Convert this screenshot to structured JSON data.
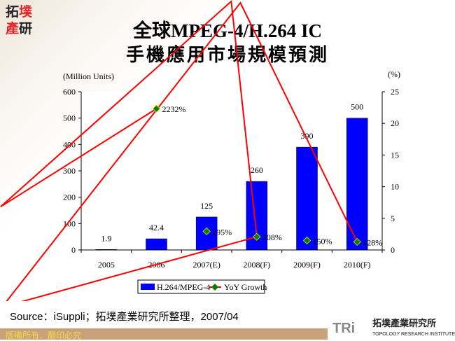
{
  "logo_text": "拓墣產研",
  "title_line1": "全球MPEG-4/H.264 IC",
  "title_line2": "手機應用市場規模預測",
  "source": "Source：iSuppli；拓墣產業研究所整理，2007/04",
  "footer": "版權所有．翻印必究",
  "brand": {
    "abbr": "TRi",
    "name": "拓墣產業研究所",
    "english": "TOPOLOGY RESEARCH INSTITUTE"
  },
  "chart_data": {
    "type": "bar+line",
    "categories": [
      "2005",
      "2006",
      "2007(E)",
      "2008(F)",
      "2009(F)",
      "2010(F)"
    ],
    "ylabel": "(Million Units)",
    "y2label": "(%)",
    "ylim": [
      0,
      600
    ],
    "yticks": [
      "0",
      "100",
      "200",
      "300",
      "400",
      "500",
      "600"
    ],
    "y2lim": [
      0,
      25
    ],
    "y2ticks": [
      "0",
      "5",
      "10",
      "15",
      "20",
      "25"
    ],
    "series": [
      {
        "name": "H.264/MPEG-4",
        "kind": "bar",
        "color": "#0000ff",
        "values": [
          1.9,
          42.4,
          125,
          260,
          390,
          500
        ],
        "labels": [
          "1.9",
          "42.4",
          "125",
          "260",
          "390",
          "500"
        ]
      },
      {
        "name": "YoY Growth",
        "kind": "line",
        "axis": "right",
        "color": "#ff0000",
        "marker_color": "#008000",
        "values": [
          null,
          22.32,
          2.95,
          2.08,
          1.5,
          1.28
        ],
        "labels": [
          "",
          "2232%",
          "295%",
          "208%",
          "150%",
          "128%"
        ]
      }
    ],
    "legend": "bottom",
    "grid": false
  }
}
